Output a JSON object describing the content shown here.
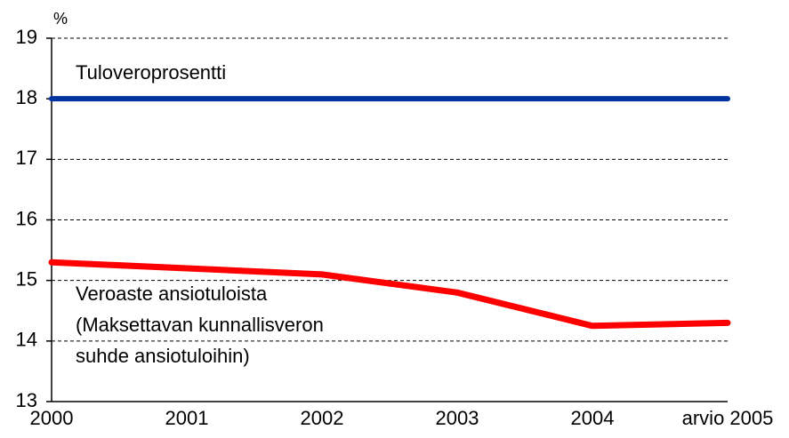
{
  "chart_data": {
    "type": "line",
    "y_unit_label": "%",
    "categories": [
      "2000",
      "2001",
      "2002",
      "2003",
      "2004",
      "arvio 2005"
    ],
    "series": [
      {
        "name_lines": [
          "Tuloveroprosentti"
        ],
        "color": "#0033a0",
        "values": [
          18,
          18,
          18,
          18,
          18,
          18
        ]
      },
      {
        "name_lines": [
          "Veroaste ansiotuloista",
          "(Maksettavan kunnallisveron",
          "suhde ansiotuloihin)"
        ],
        "color": "#ff0000",
        "values": [
          15.3,
          15.2,
          15.1,
          14.8,
          14.25,
          14.3
        ]
      }
    ],
    "ylim": [
      13,
      19
    ],
    "yticks": [
      13,
      14,
      15,
      16,
      17,
      18,
      19
    ],
    "grid": true
  }
}
